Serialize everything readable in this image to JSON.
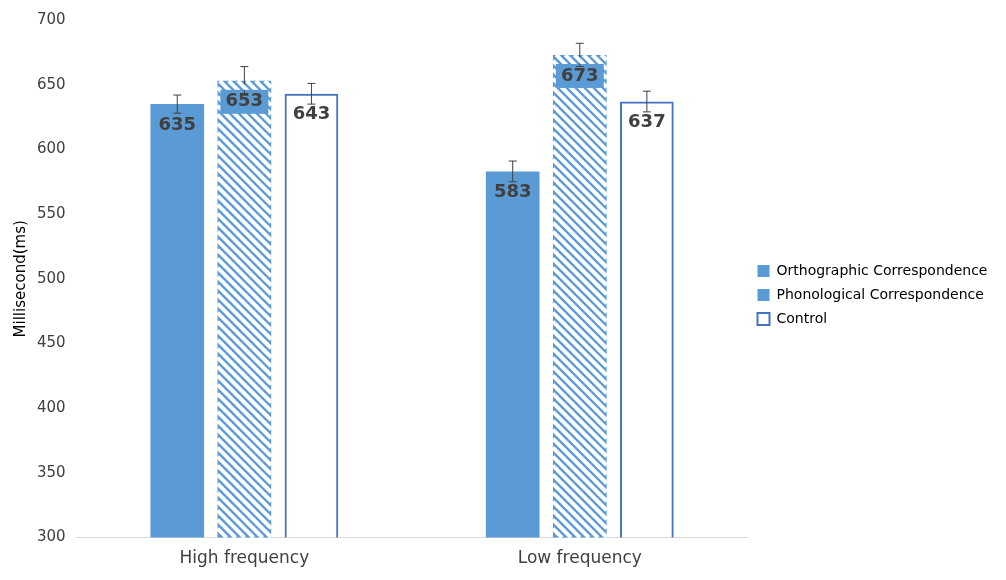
{
  "chart_data": {
    "type": "bar",
    "ylabel": "Millisecond(ms)",
    "categories": [
      "High frequency",
      "Low frequency"
    ],
    "series": [
      {
        "name": "Orthographic Correspondence",
        "color": "#5b9bd5",
        "values": [
          635,
          583
        ],
        "errors": [
          7,
          8
        ]
      },
      {
        "name": "Phonological Correspondence",
        "color": "#5b9bd5",
        "values": [
          653,
          673
        ],
        "errors": [
          11,
          9
        ]
      },
      {
        "name": "Control",
        "color": "#4472c4",
        "values": [
          643,
          637
        ],
        "errors": [
          8,
          8
        ]
      }
    ],
    "ylim": [
      300,
      700
    ],
    "yticks": [
      300,
      350,
      400,
      450,
      500,
      550,
      600,
      650,
      700
    ],
    "grid": false,
    "legend": "right",
    "data_labels": true
  }
}
